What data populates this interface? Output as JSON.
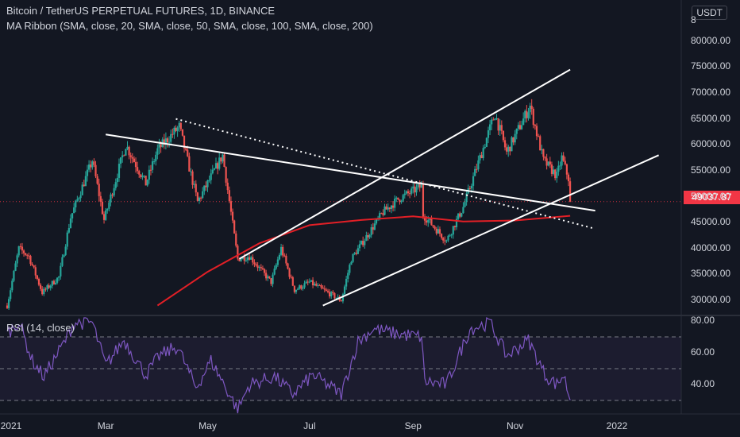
{
  "header": {
    "title": "Bitcoin / TetherUS PERPETUAL FUTURES, 1D, BINANCE",
    "indicator": "MA Ribbon (SMA, close, 20, SMA, close, 50, SMA, close, 100, SMA, close, 200)",
    "currency": "USDT"
  },
  "rsi_label": "RSI (14, close)",
  "last_price": "49037.87",
  "colors": {
    "bg": "#131722",
    "up": "#26a69a",
    "down": "#ef5350",
    "sma200": "#e21f26",
    "rsi": "#7e57c2",
    "badge": "#f23645"
  },
  "chart_data": [
    {
      "type": "candlestick",
      "x_labels": [
        "2021",
        "Mar",
        "May",
        "Jul",
        "Sep",
        "Nov",
        "2022"
      ],
      "ytick_labels": [
        "30000.00",
        "35000.00",
        "40000.00",
        "45000.00",
        "50000.00",
        "55000.00",
        "60000.00",
        "65000.00",
        "70000.00",
        "75000.00",
        "80000.00",
        "8"
      ],
      "ylim": [
        28000,
        83000
      ],
      "last_price": 49037.87,
      "price_path": [
        {
          "date": "2021-01-01",
          "close": 29000
        },
        {
          "date": "2021-01-08",
          "close": 40000
        },
        {
          "date": "2021-01-14",
          "close": 38500
        },
        {
          "date": "2021-01-22",
          "close": 31500
        },
        {
          "date": "2021-02-01",
          "close": 34500
        },
        {
          "date": "2021-02-08",
          "close": 46000
        },
        {
          "date": "2021-02-21",
          "close": 57000
        },
        {
          "date": "2021-02-28",
          "close": 45500
        },
        {
          "date": "2021-03-13",
          "close": 60000
        },
        {
          "date": "2021-03-25",
          "close": 52500
        },
        {
          "date": "2021-04-01",
          "close": 59000
        },
        {
          "date": "2021-04-14",
          "close": 63500
        },
        {
          "date": "2021-04-25",
          "close": 49000
        },
        {
          "date": "2021-05-10",
          "close": 58000
        },
        {
          "date": "2021-05-19",
          "close": 38000
        },
        {
          "date": "2021-05-26",
          "close": 38500
        },
        {
          "date": "2021-06-08",
          "close": 33500
        },
        {
          "date": "2021-06-14",
          "close": 40000
        },
        {
          "date": "2021-06-22",
          "close": 32000
        },
        {
          "date": "2021-07-01",
          "close": 33500
        },
        {
          "date": "2021-07-20",
          "close": 30000
        },
        {
          "date": "2021-07-26",
          "close": 38000
        },
        {
          "date": "2021-08-14",
          "close": 47000
        },
        {
          "date": "2021-08-23",
          "close": 49500
        },
        {
          "date": "2021-09-06",
          "close": 52000
        },
        {
          "date": "2021-09-07",
          "close": 46500
        },
        {
          "date": "2021-09-21",
          "close": 41500
        },
        {
          "date": "2021-10-01",
          "close": 48000
        },
        {
          "date": "2021-10-20",
          "close": 66000
        },
        {
          "date": "2021-10-27",
          "close": 58500
        },
        {
          "date": "2021-11-10",
          "close": 67500
        },
        {
          "date": "2021-11-18",
          "close": 57000
        },
        {
          "date": "2021-11-26",
          "close": 54000
        },
        {
          "date": "2021-11-29",
          "close": 57500
        },
        {
          "date": "2021-12-03",
          "close": 53500
        },
        {
          "date": "2021-12-04",
          "close": 49037.87
        }
      ],
      "sma200_path": [
        {
          "date": "2021-04-01",
          "value": 29000
        },
        {
          "date": "2021-05-01",
          "value": 35500
        },
        {
          "date": "2021-06-01",
          "value": 41000
        },
        {
          "date": "2021-07-01",
          "value": 44500
        },
        {
          "date": "2021-08-01",
          "value": 45500
        },
        {
          "date": "2021-09-01",
          "value": 46200
        },
        {
          "date": "2021-10-01",
          "value": 45200
        },
        {
          "date": "2021-11-01",
          "value": 45400
        },
        {
          "date": "2021-12-04",
          "value": 46300
        }
      ],
      "trendlines": [
        {
          "style": "solid",
          "from": {
            "date": "2021-03-01",
            "value": 62000
          },
          "to": {
            "date": "2021-12-19",
            "value": 47300
          }
        },
        {
          "style": "dotted",
          "from": {
            "date": "2021-04-12",
            "value": 65000
          },
          "to": {
            "date": "2021-12-19",
            "value": 43800
          }
        },
        {
          "style": "solid",
          "from": {
            "date": "2021-05-20",
            "value": 38000
          },
          "to": {
            "date": "2021-12-04",
            "value": 74500
          }
        },
        {
          "style": "solid",
          "from": {
            "date": "2021-07-09",
            "value": 29000
          },
          "to": {
            "date": "2022-01-26",
            "value": 58000
          }
        }
      ]
    },
    {
      "type": "line",
      "name": "RSI (14, close)",
      "ytick_labels": [
        "40.00",
        "60.00",
        "80.00"
      ],
      "ylim": [
        23,
        83
      ],
      "bands": [
        30,
        50,
        70
      ],
      "path": [
        {
          "date": "2021-01-01",
          "value": 72
        },
        {
          "date": "2021-01-08",
          "value": 80
        },
        {
          "date": "2021-01-16",
          "value": 55
        },
        {
          "date": "2021-01-23",
          "value": 45
        },
        {
          "date": "2021-02-05",
          "value": 68
        },
        {
          "date": "2021-02-10",
          "value": 79
        },
        {
          "date": "2021-02-21",
          "value": 79
        },
        {
          "date": "2021-03-01",
          "value": 52
        },
        {
          "date": "2021-03-12",
          "value": 68
        },
        {
          "date": "2021-03-25",
          "value": 46
        },
        {
          "date": "2021-04-02",
          "value": 58
        },
        {
          "date": "2021-04-13",
          "value": 64
        },
        {
          "date": "2021-04-24",
          "value": 38
        },
        {
          "date": "2021-05-03",
          "value": 55
        },
        {
          "date": "2021-05-12",
          "value": 38
        },
        {
          "date": "2021-05-19",
          "value": 24
        },
        {
          "date": "2021-05-26",
          "value": 40
        },
        {
          "date": "2021-06-10",
          "value": 45
        },
        {
          "date": "2021-06-21",
          "value": 34
        },
        {
          "date": "2021-07-03",
          "value": 46
        },
        {
          "date": "2021-07-20",
          "value": 34
        },
        {
          "date": "2021-07-30",
          "value": 67
        },
        {
          "date": "2021-08-08",
          "value": 75
        },
        {
          "date": "2021-08-22",
          "value": 72
        },
        {
          "date": "2021-09-06",
          "value": 70
        },
        {
          "date": "2021-09-08",
          "value": 42
        },
        {
          "date": "2021-09-21",
          "value": 40
        },
        {
          "date": "2021-10-05",
          "value": 75
        },
        {
          "date": "2021-10-17",
          "value": 79
        },
        {
          "date": "2021-10-27",
          "value": 58
        },
        {
          "date": "2021-11-09",
          "value": 68
        },
        {
          "date": "2021-11-19",
          "value": 46
        },
        {
          "date": "2021-11-26",
          "value": 40
        },
        {
          "date": "2021-11-30",
          "value": 46
        },
        {
          "date": "2021-12-04",
          "value": 31
        }
      ]
    }
  ]
}
